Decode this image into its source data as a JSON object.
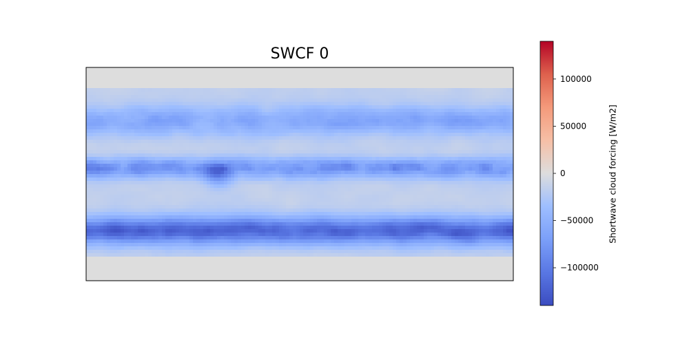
{
  "chart_data": {
    "type": "heatmap",
    "title": "SWCF 0",
    "xlabel": "",
    "ylabel": "",
    "colorbar": {
      "label": "Shortwave cloud forcing [W/m2]",
      "colormap": "coolwarm",
      "vmin": -140000,
      "vmax": 140000,
      "ticks": [
        -100000,
        -50000,
        0,
        50000,
        100000
      ],
      "tick_labels": [
        "−100000",
        "−50000",
        "0",
        "50000",
        "100000"
      ]
    },
    "grid": false,
    "description_values": {
      "polar_value": 0,
      "southern_ocean_min": -115000,
      "tropical_min": -80000,
      "subtropical_value": -15000
    }
  },
  "colors": {
    "cold": "#3b4cc0",
    "neutral": "#dddddd",
    "warm": "#b40426"
  }
}
